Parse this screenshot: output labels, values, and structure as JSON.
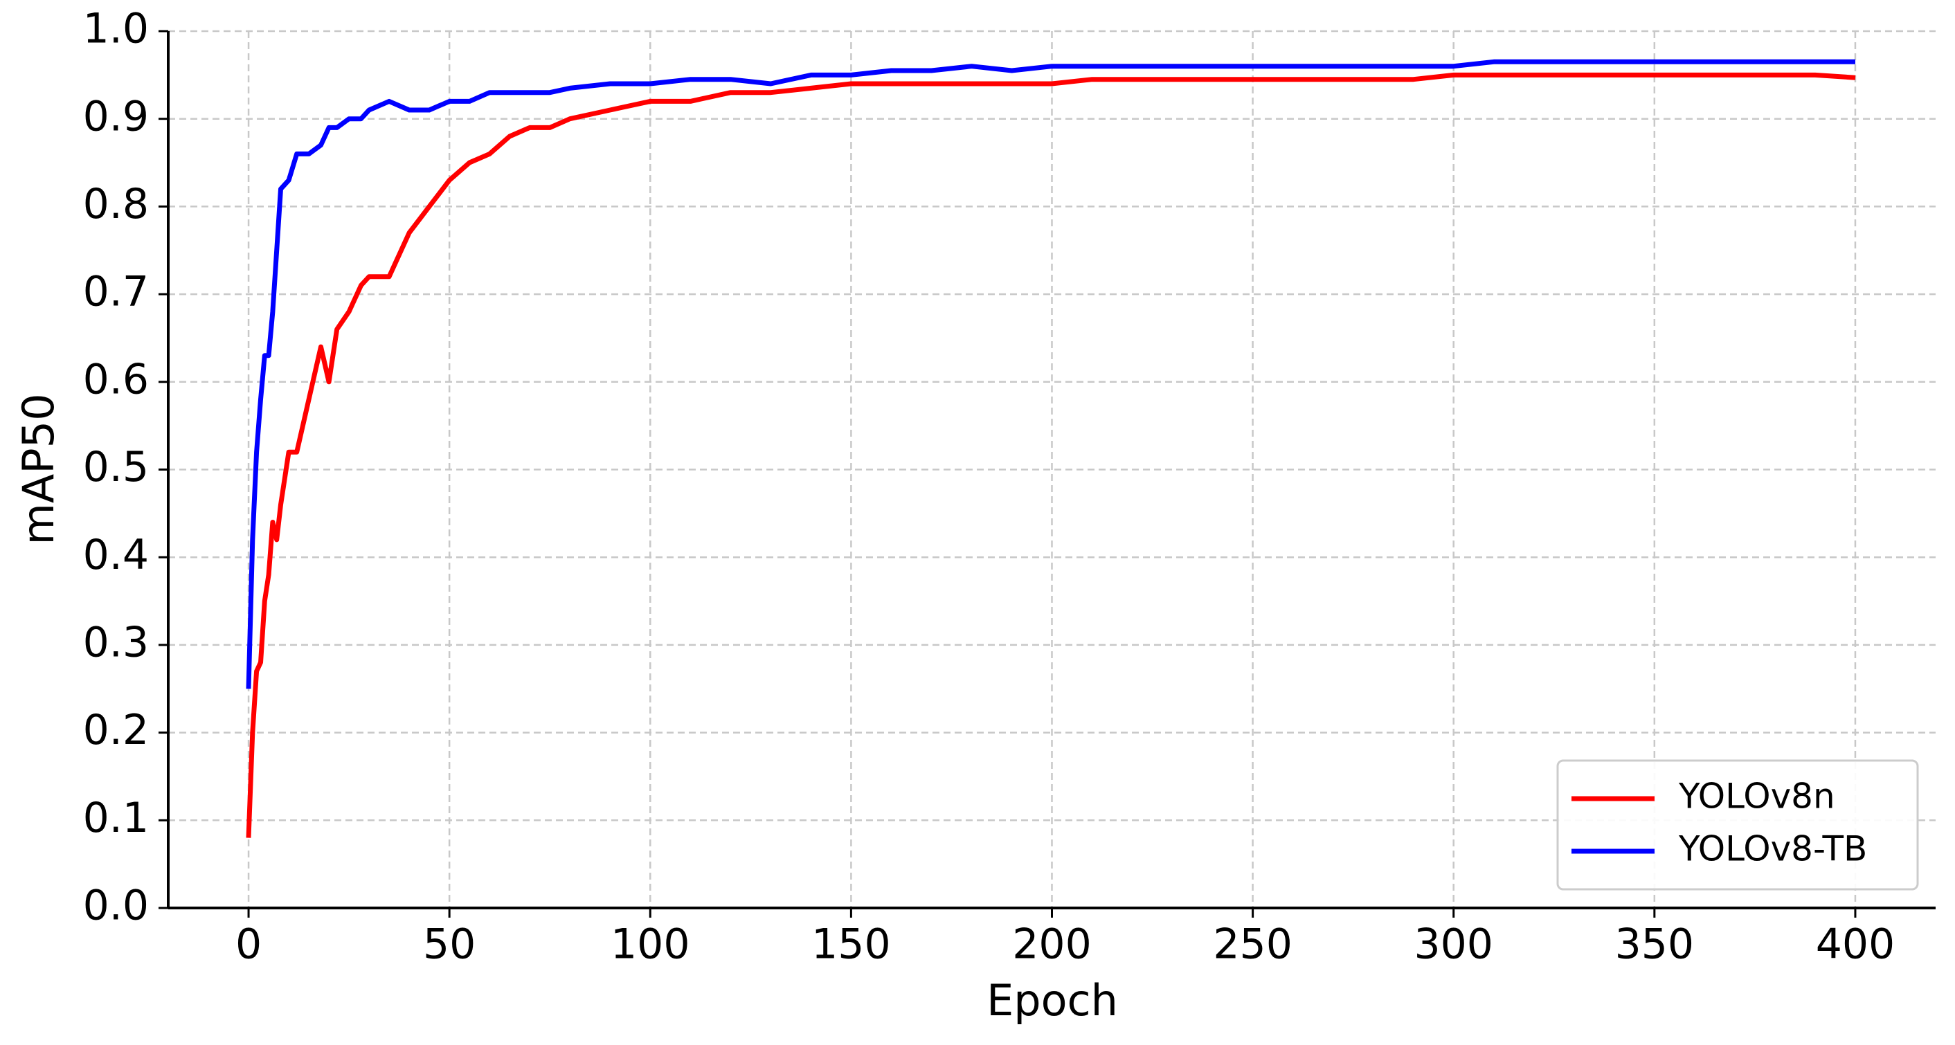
{
  "chart_data": {
    "type": "line",
    "xlabel": "Epoch",
    "ylabel": "mAP50",
    "x": [
      0,
      1,
      2,
      3,
      4,
      5,
      6,
      7,
      8,
      10,
      12,
      15,
      18,
      20,
      22,
      25,
      28,
      30,
      35,
      40,
      45,
      50,
      55,
      60,
      65,
      70,
      75,
      80,
      90,
      100,
      110,
      120,
      130,
      140,
      150,
      160,
      170,
      180,
      190,
      200,
      210,
      220,
      230,
      240,
      250,
      260,
      270,
      280,
      290,
      300,
      310,
      320,
      330,
      340,
      350,
      360,
      370,
      380,
      390,
      400
    ],
    "series": [
      {
        "name": "YOLOv8n",
        "color": "#ff0000",
        "values": [
          0.08,
          0.2,
          0.27,
          0.28,
          0.35,
          0.38,
          0.44,
          0.42,
          0.46,
          0.52,
          0.52,
          0.58,
          0.64,
          0.6,
          0.66,
          0.68,
          0.71,
          0.72,
          0.72,
          0.77,
          0.8,
          0.83,
          0.85,
          0.86,
          0.88,
          0.89,
          0.89,
          0.9,
          0.91,
          0.92,
          0.92,
          0.93,
          0.93,
          0.935,
          0.94,
          0.94,
          0.94,
          0.94,
          0.94,
          0.94,
          0.945,
          0.945,
          0.945,
          0.945,
          0.945,
          0.945,
          0.945,
          0.945,
          0.945,
          0.95,
          0.95,
          0.95,
          0.95,
          0.95,
          0.95,
          0.95,
          0.95,
          0.95,
          0.95,
          0.947
        ]
      },
      {
        "name": "YOLOv8-TB",
        "color": "#0000ff",
        "values": [
          0.25,
          0.42,
          0.52,
          0.58,
          0.63,
          0.63,
          0.68,
          0.75,
          0.82,
          0.83,
          0.86,
          0.86,
          0.87,
          0.89,
          0.89,
          0.9,
          0.9,
          0.91,
          0.92,
          0.91,
          0.91,
          0.92,
          0.92,
          0.93,
          0.93,
          0.93,
          0.93,
          0.935,
          0.94,
          0.94,
          0.945,
          0.945,
          0.94,
          0.95,
          0.95,
          0.955,
          0.955,
          0.96,
          0.955,
          0.96,
          0.96,
          0.96,
          0.96,
          0.96,
          0.96,
          0.96,
          0.96,
          0.96,
          0.96,
          0.96,
          0.965,
          0.965,
          0.965,
          0.965,
          0.965,
          0.965,
          0.965,
          0.965,
          0.965,
          0.965
        ]
      }
    ],
    "xlim": [
      -20,
      420
    ],
    "xticks": [
      0,
      50,
      100,
      150,
      200,
      250,
      300,
      350,
      400
    ],
    "ylim": [
      0,
      1
    ],
    "yticks": [
      {
        "value": 0,
        "label": "0.0"
      },
      0.1,
      0.2,
      0.3,
      0.4,
      0.5,
      0.6,
      0.7,
      0.8,
      0.9,
      {
        "value": 1,
        "label": "1.0"
      }
    ],
    "grid": true,
    "legend": "lower right"
  }
}
